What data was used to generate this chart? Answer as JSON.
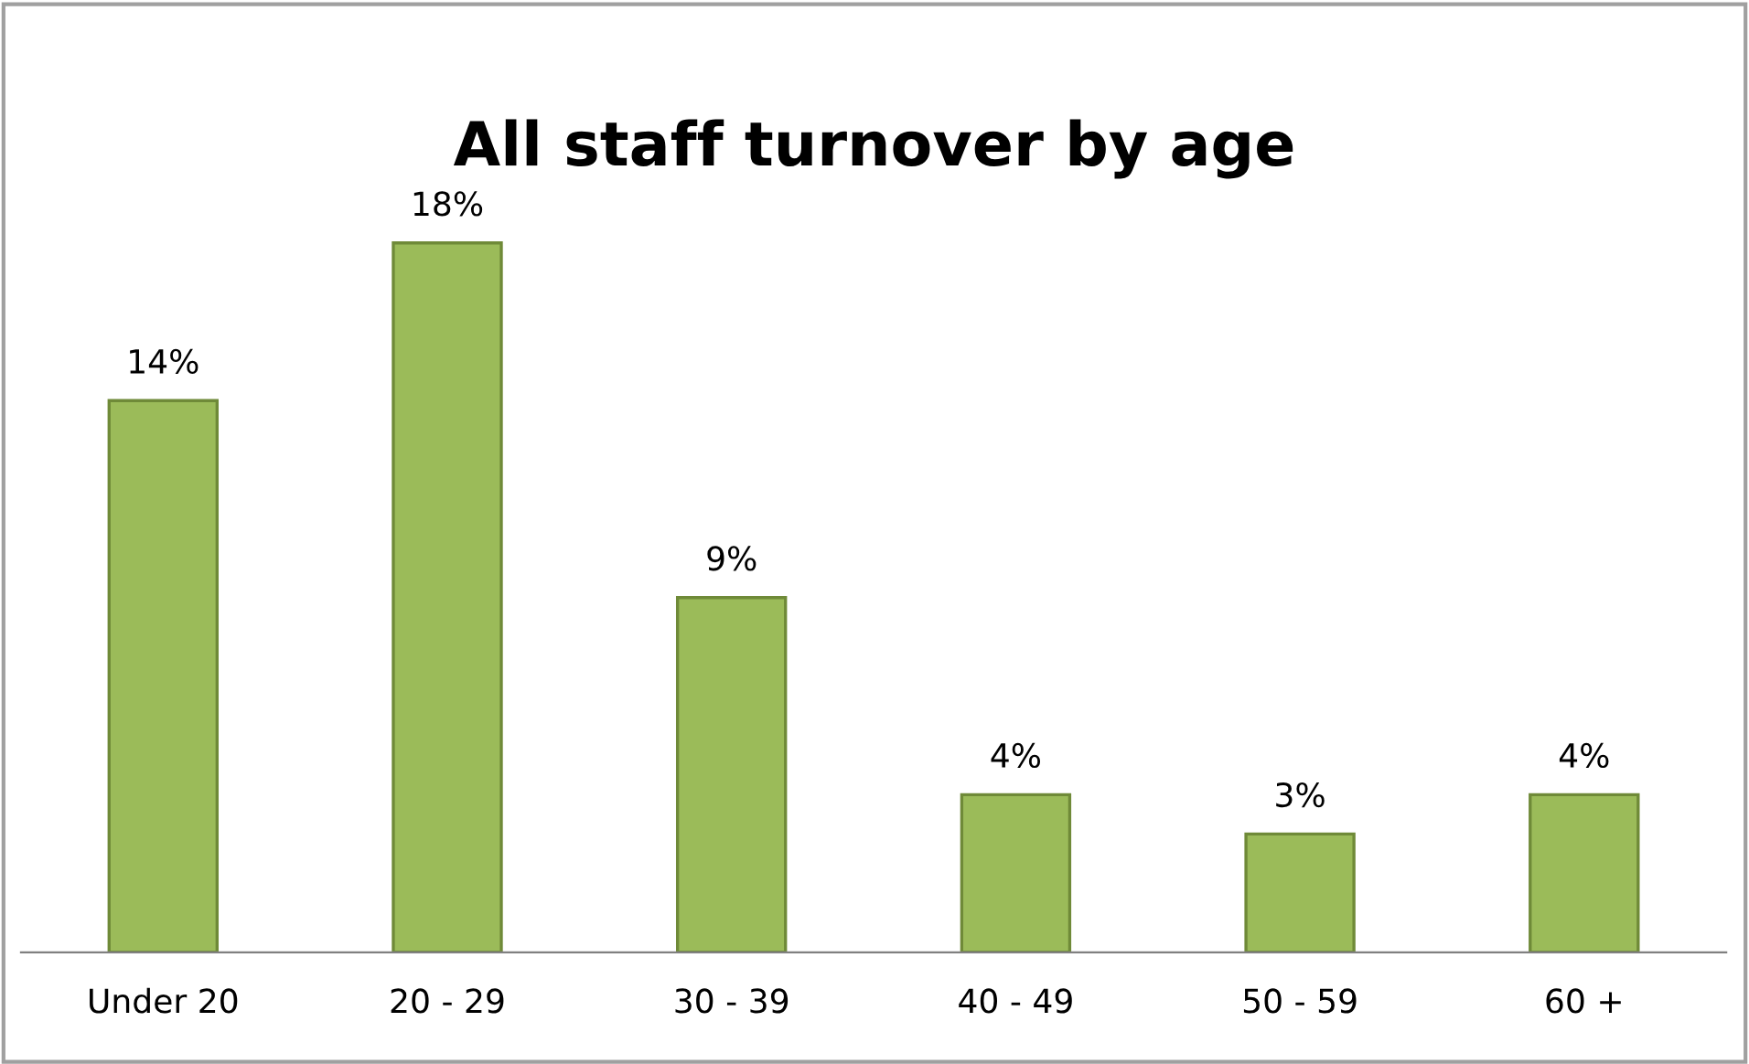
{
  "chart_data": {
    "type": "bar",
    "title": "All staff turnover by age",
    "categories": [
      "Under 20",
      "20 - 29",
      "30 - 39",
      "40 - 49",
      "50 - 59",
      "60 +"
    ],
    "values": [
      14,
      18,
      9,
      4,
      3,
      4
    ],
    "value_labels": [
      "14%",
      "18%",
      "9%",
      "4%",
      "3%",
      "4%"
    ],
    "color": "#9bbb59",
    "grid": false,
    "legend": false
  }
}
